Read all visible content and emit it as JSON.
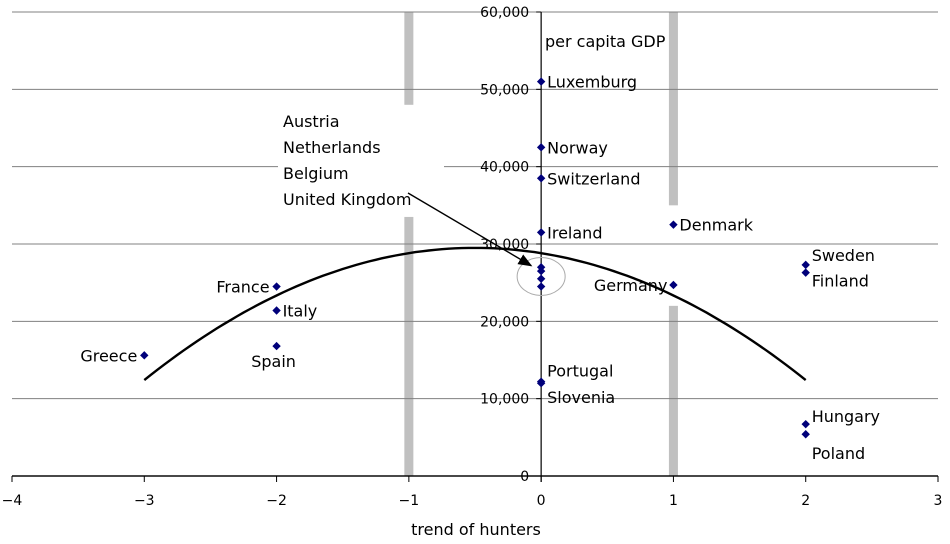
{
  "chart_data": {
    "type": "scatter",
    "title": "",
    "xlabel": "trend of hunters",
    "ylabel": "per capita GDP",
    "xlim": [
      -4,
      3
    ],
    "ylim": [
      0,
      60000
    ],
    "x_ticks": [
      "−4",
      "−3",
      "−2",
      "−1",
      "0",
      "1",
      "2",
      "3"
    ],
    "y_ticks": [
      "0",
      "10,000",
      "20,000",
      "30,000",
      "40,000",
      "50,000",
      "60,000"
    ],
    "grid": "horizontal",
    "legend": "none",
    "points": [
      {
        "label": "Luxemburg",
        "x": 0,
        "y": 51000
      },
      {
        "label": "Norway",
        "x": 0,
        "y": 42500
      },
      {
        "label": "Switzerland",
        "x": 0,
        "y": 38500
      },
      {
        "label": "Ireland",
        "x": 0,
        "y": 31500
      },
      {
        "label": "",
        "x": 0,
        "y": 27000
      },
      {
        "label": "",
        "x": 0,
        "y": 26500
      },
      {
        "label": "",
        "x": 0,
        "y": 25500
      },
      {
        "label": "",
        "x": 0,
        "y": 24500
      },
      {
        "label": "Portugal",
        "x": 0,
        "y": 12200
      },
      {
        "label": "Slovenia",
        "x": 0,
        "y": 12000
      },
      {
        "label": "Denmark",
        "x": 1,
        "y": 32500
      },
      {
        "label": "Germany",
        "x": 1,
        "y": 24700
      },
      {
        "label": "Sweden",
        "x": 2,
        "y": 27300
      },
      {
        "label": "Finland",
        "x": 2,
        "y": 26300
      },
      {
        "label": "Hungary",
        "x": 2,
        "y": 6700
      },
      {
        "label": "Poland",
        "x": 2,
        "y": 5400
      },
      {
        "label": "France",
        "x": -2,
        "y": 24500
      },
      {
        "label": "Italy",
        "x": -2,
        "y": 21400
      },
      {
        "label": "Spain",
        "x": -2,
        "y": 16800
      },
      {
        "label": "Greece",
        "x": -3,
        "y": 15600
      }
    ],
    "annotation": {
      "lines": [
        "Austria",
        "Netherlands",
        "Belgium",
        "United Kingdom"
      ]
    },
    "trend_curve": {
      "type": "quadratic",
      "x_range": [
        -3,
        2
      ],
      "vertex_x": -0.5,
      "vertex_y": 29500,
      "a": -2735
    },
    "marker_color": "#00007a",
    "gray_band_color": "#c0c0c0",
    "gridline_color": "#808080"
  }
}
